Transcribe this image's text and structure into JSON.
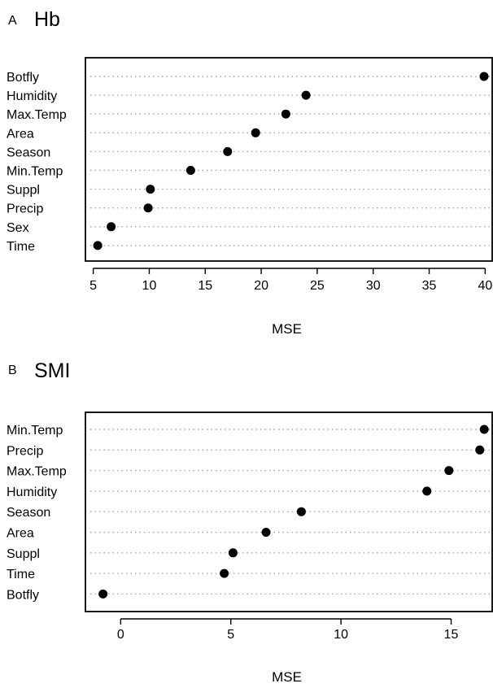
{
  "chart_data": [
    {
      "type": "scatter",
      "panel": "A",
      "title": "Hb",
      "xlabel": "MSE",
      "xlim": [
        4.3,
        40.7
      ],
      "xticks": [
        5,
        10,
        15,
        20,
        25,
        30,
        35,
        40
      ],
      "grid": "horizontal dotted lines",
      "points": [
        {
          "label": "Botfly",
          "x": 39.9
        },
        {
          "label": "Humidity",
          "x": 24.0
        },
        {
          "label": "Max.Temp",
          "x": 22.2
        },
        {
          "label": "Area",
          "x": 19.5
        },
        {
          "label": "Season",
          "x": 17.0
        },
        {
          "label": "Min.Temp",
          "x": 13.7
        },
        {
          "label": "Suppl",
          "x": 10.1
        },
        {
          "label": "Precip",
          "x": 9.9
        },
        {
          "label": "Sex",
          "x": 6.6
        },
        {
          "label": "Time",
          "x": 5.4
        }
      ]
    },
    {
      "type": "scatter",
      "panel": "B",
      "title": "SMI",
      "xlabel": "MSE",
      "xlim": [
        -1.6,
        16.9
      ],
      "xticks": [
        0,
        5,
        10,
        15
      ],
      "grid": "horizontal dotted lines",
      "points": [
        {
          "label": "Min.Temp",
          "x": 16.5
        },
        {
          "label": "Precip",
          "x": 16.3
        },
        {
          "label": "Max.Temp",
          "x": 14.9
        },
        {
          "label": "Humidity",
          "x": 13.9
        },
        {
          "label": "Season",
          "x": 8.2
        },
        {
          "label": "Area",
          "x": 6.6
        },
        {
          "label": "Suppl",
          "x": 5.1
        },
        {
          "label": "Time",
          "x": 4.7
        },
        {
          "label": "Botfly",
          "x": -0.8
        }
      ]
    }
  ]
}
